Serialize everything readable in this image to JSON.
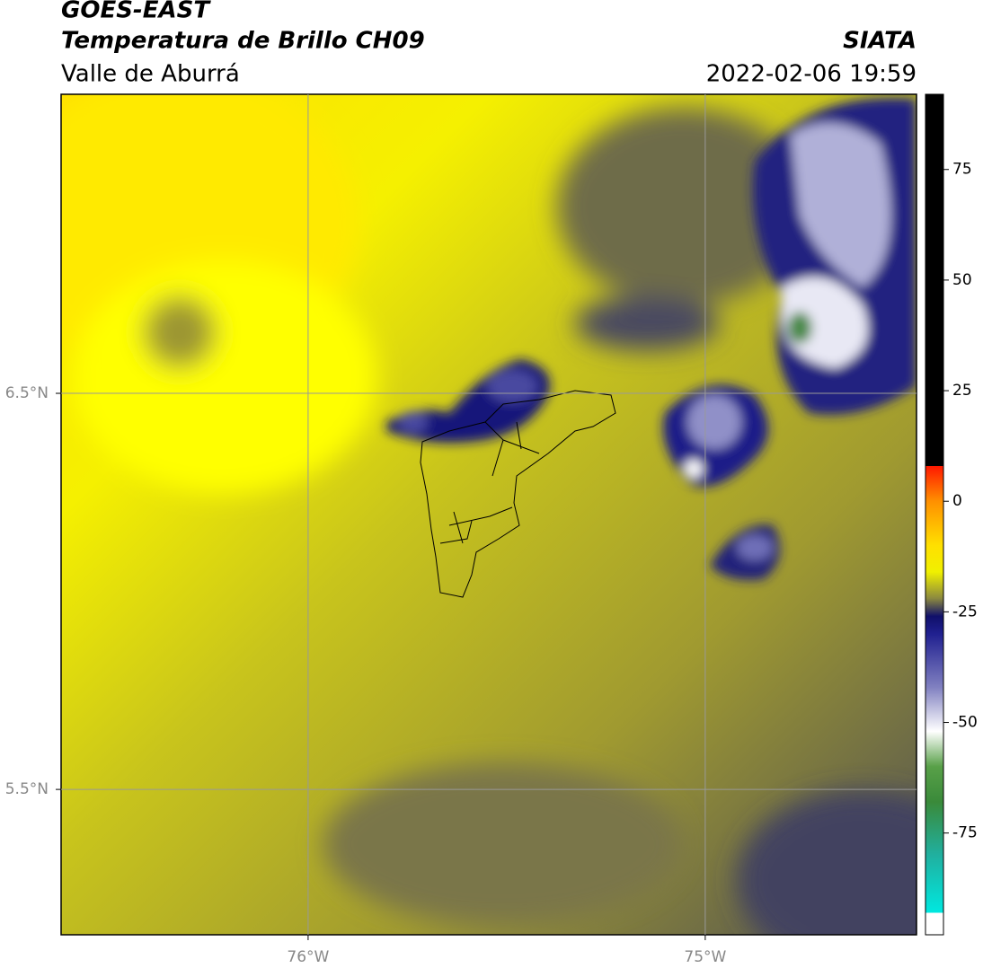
{
  "header": {
    "title": "GOES-EAST",
    "subtitle": "Temperatura de Brillo CH09",
    "region": "Valle de Aburrá",
    "source": "SIATA",
    "datetime": "2022-02-06 19:59"
  },
  "map": {
    "xlim": [
      -76.622,
      -74.468
    ],
    "ylim": [
      5.133,
      7.255
    ],
    "xticks": [
      {
        "value": -76,
        "label": "76°W"
      },
      {
        "value": -75,
        "label": "75°W"
      }
    ],
    "yticks": [
      {
        "value": 6.5,
        "label": "6.5°N"
      },
      {
        "value": 5.5,
        "label": "5.5°N"
      }
    ],
    "grid": true,
    "grid_color": "#999999"
  },
  "colorbar": {
    "lim": [
      -98,
      92
    ],
    "ticks": [
      75,
      50,
      25,
      0,
      -25,
      -50,
      -75
    ],
    "stops": [
      {
        "value": -98,
        "color": "#ffffff"
      },
      {
        "value": -93,
        "color": "#ffffff"
      },
      {
        "value": -93,
        "color": "#00e8e0"
      },
      {
        "value": -80,
        "color": "#20b0a0"
      },
      {
        "value": -68,
        "color": "#3a8a3a"
      },
      {
        "value": -60,
        "color": "#58a048"
      },
      {
        "value": -52,
        "color": "#ffffff"
      },
      {
        "value": -42,
        "color": "#8080c0"
      },
      {
        "value": -30,
        "color": "#202090"
      },
      {
        "value": -26,
        "color": "#10106a"
      },
      {
        "value": -22,
        "color": "#8a8840"
      },
      {
        "value": -16,
        "color": "#f0f000"
      },
      {
        "value": -10,
        "color": "#ffe000"
      },
      {
        "value": 0,
        "color": "#ff9000"
      },
      {
        "value": 8,
        "color": "#ff1800"
      },
      {
        "value": 8,
        "color": "#000000"
      },
      {
        "value": 92,
        "color": "#000000"
      }
    ]
  }
}
